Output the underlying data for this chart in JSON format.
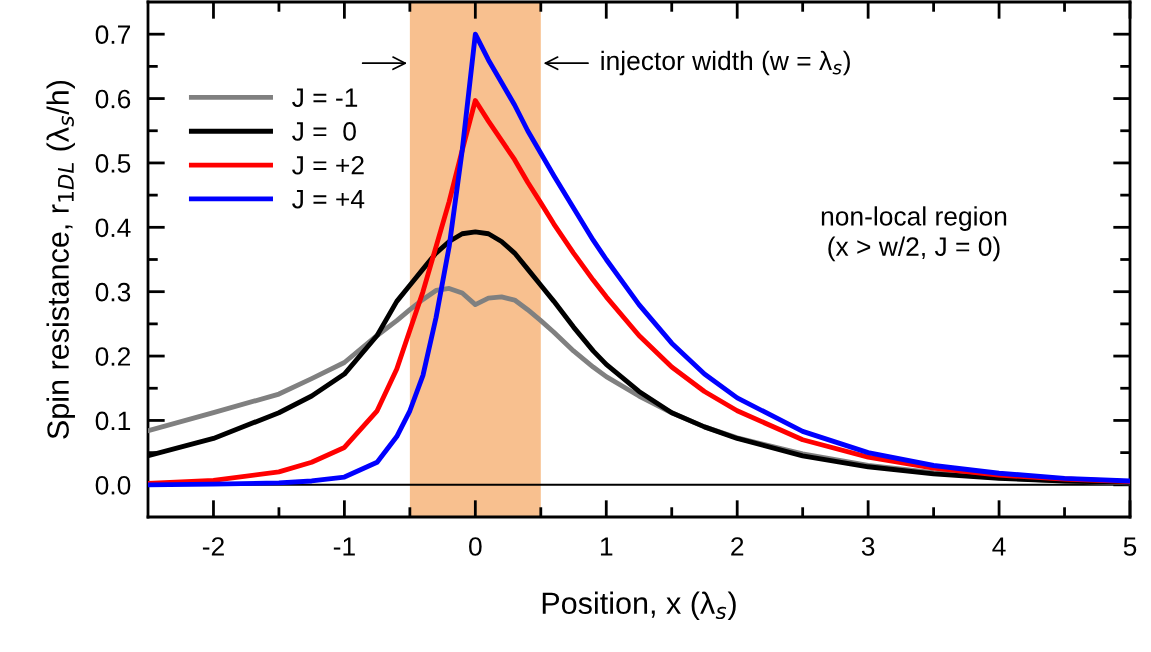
{
  "chart_data": {
    "type": "line",
    "xlabel": "Position, x (λ$_{s}$)",
    "ylabel": "Spin resistance, r$_{1DL}$ (λ$_{s}$/h)",
    "x": [
      -2.5,
      -2,
      -1.5,
      -1.25,
      -1,
      -0.75,
      -0.6,
      -0.5,
      -0.4,
      -0.3,
      -0.2,
      -0.1,
      0,
      0.1,
      0.2,
      0.3,
      0.4,
      0.5,
      0.6,
      0.75,
      0.9,
      1,
      1.25,
      1.5,
      1.75,
      2,
      2.5,
      3,
      3.5,
      4,
      4.5,
      5
    ],
    "series": [
      {
        "name": "J = -1",
        "color": "#808080",
        "values": [
          0.084,
          0.112,
          0.141,
          0.165,
          0.19,
          0.232,
          0.255,
          0.272,
          0.288,
          0.302,
          0.305,
          0.298,
          0.28,
          0.29,
          0.292,
          0.287,
          0.272,
          0.255,
          0.237,
          0.208,
          0.183,
          0.168,
          0.138,
          0.112,
          0.09,
          0.073,
          0.048,
          0.03,
          0.019,
          0.011,
          0.006,
          0.003
        ]
      },
      {
        "name": "J =  0",
        "color": "#000000",
        "values": [
          0.045,
          0.072,
          0.112,
          0.138,
          0.172,
          0.232,
          0.285,
          0.31,
          0.335,
          0.36,
          0.378,
          0.39,
          0.393,
          0.39,
          0.378,
          0.36,
          0.335,
          0.31,
          0.285,
          0.245,
          0.208,
          0.187,
          0.145,
          0.112,
          0.09,
          0.072,
          0.045,
          0.028,
          0.017,
          0.01,
          0.006,
          0.004
        ]
      },
      {
        "name": "J = +2",
        "color": "#ff0000",
        "values": [
          0.002,
          0.007,
          0.02,
          0.035,
          0.058,
          0.115,
          0.18,
          0.24,
          0.3,
          0.37,
          0.44,
          0.52,
          0.597,
          0.565,
          0.535,
          0.505,
          0.47,
          0.438,
          0.405,
          0.36,
          0.318,
          0.292,
          0.232,
          0.183,
          0.145,
          0.115,
          0.07,
          0.043,
          0.026,
          0.015,
          0.009,
          0.005
        ]
      },
      {
        "name": "J = +4",
        "color": "#0000ff",
        "values": [
          0.0,
          0.001,
          0.003,
          0.006,
          0.012,
          0.035,
          0.075,
          0.115,
          0.17,
          0.26,
          0.37,
          0.52,
          0.7,
          0.66,
          0.625,
          0.59,
          0.55,
          0.515,
          0.48,
          0.43,
          0.38,
          0.35,
          0.28,
          0.22,
          0.172,
          0.135,
          0.083,
          0.05,
          0.03,
          0.018,
          0.01,
          0.006
        ]
      }
    ],
    "xlim": [
      -2.5,
      5
    ],
    "ylim": [
      -0.05,
      0.75
    ],
    "xticks": [
      -2,
      {
        "value": -1.5,
        "label": null
      },
      -1,
      {
        "value": -0.5,
        "label": null
      },
      0,
      {
        "value": 0.5,
        "label": null
      },
      1,
      {
        "value": 1.5,
        "label": null
      },
      2,
      {
        "value": 2.5,
        "label": null
      },
      3,
      {
        "value": 3.5,
        "label": null
      },
      4,
      {
        "value": 4.5,
        "label": null
      },
      5
    ],
    "yticks": [
      {
        "value": 0,
        "label": "0.0"
      },
      {
        "value": 0.05,
        "label": null
      },
      {
        "value": 0.1,
        "label": "0.1"
      },
      {
        "value": 0.15,
        "label": null
      },
      {
        "value": 0.2,
        "label": "0.2"
      },
      {
        "value": 0.25,
        "label": null
      },
      {
        "value": 0.3,
        "label": "0.3"
      },
      {
        "value": 0.35,
        "label": null
      },
      {
        "value": 0.4,
        "label": "0.4"
      },
      {
        "value": 0.45,
        "label": null
      },
      {
        "value": 0.5,
        "label": "0.5"
      },
      {
        "value": 0.55,
        "label": null
      },
      {
        "value": 0.6,
        "label": "0.6"
      },
      {
        "value": 0.65,
        "label": null
      },
      {
        "value": 0.7,
        "label": "0.7"
      }
    ],
    "ref_lines": [
      {
        "axis": "y",
        "value": 0,
        "color": "#000000"
      }
    ],
    "bands": [
      {
        "axis": "x",
        "from": -0.5,
        "to": 0.5,
        "color": "#f8c08f"
      }
    ],
    "annotations": [
      {
        "text": "injector width (w = λ$_{s}$)",
        "x": 0.5,
        "y": 0.655
      },
      "non-local region\n(x > w/2, J = 0)"
    ],
    "legend": "top left",
    "grid": false,
    "marker": "none",
    "line_style": "solid"
  }
}
